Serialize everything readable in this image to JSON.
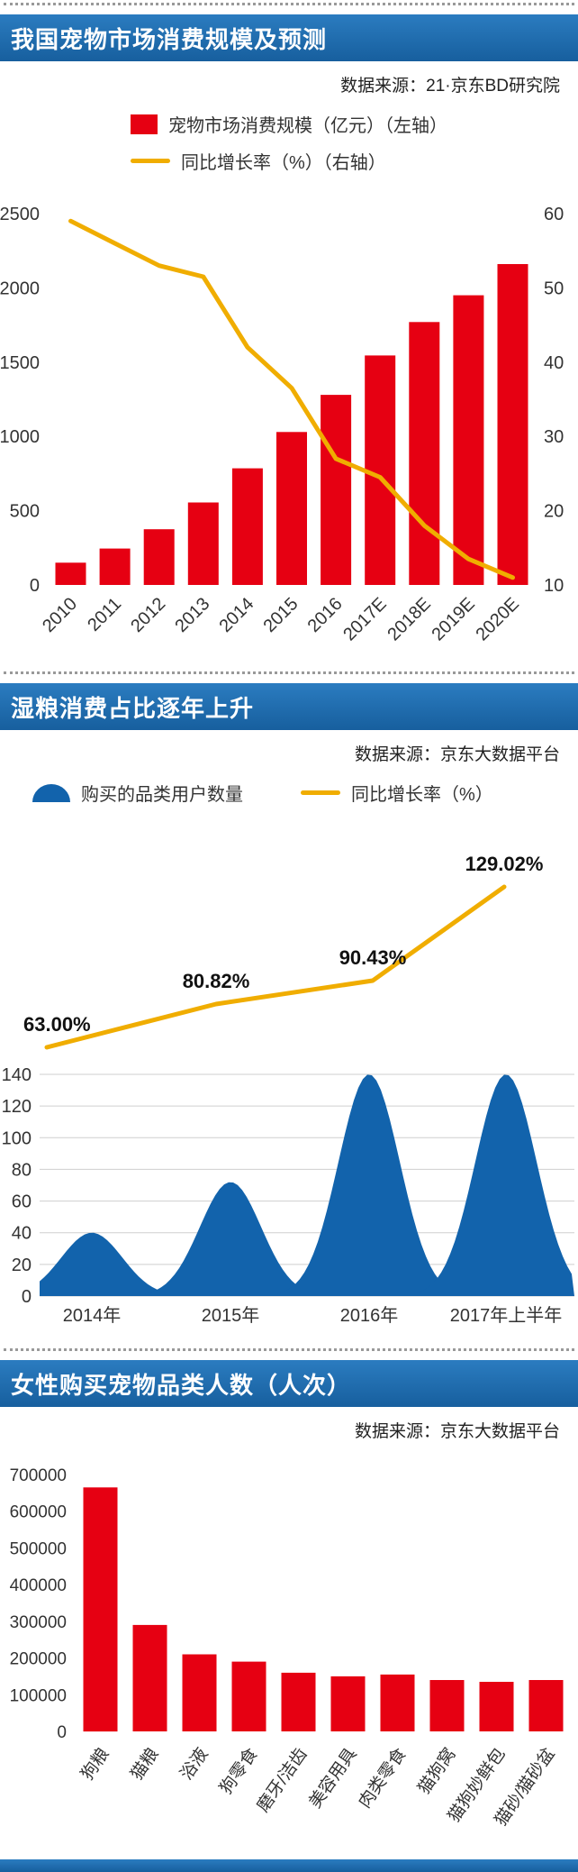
{
  "colors": {
    "header_blue": "#1e6fb2",
    "bar_red": "#e60012",
    "line_yellow": "#f0ad00",
    "hump_blue": "#1263ac",
    "grid": "#cfcfcf",
    "text": "#333333"
  },
  "sections": [
    {
      "title": "我国宠物市场消费规模及预测",
      "source": "数据来源：21·京东BD研究院",
      "legend": [
        {
          "label": "宠物市场消费规模（亿元）（左轴）"
        },
        {
          "label": "同比增长率（%）（右轴）"
        }
      ]
    },
    {
      "title": "湿粮消费占比逐年上升",
      "source": "数据来源：京东大数据平台",
      "legend": [
        {
          "label": "购买的品类用户数量"
        },
        {
          "label": "同比增长率（%）"
        }
      ]
    },
    {
      "title": "女性购买宠物品类人数（人次）",
      "source": "数据来源：京东大数据平台"
    }
  ],
  "chart_data": [
    {
      "type": "bar",
      "subtype": "bar+line combo, dual axis",
      "title": "我国宠物市场消费规模及预测",
      "categories": [
        "2010",
        "2011",
        "2012",
        "2013",
        "2014",
        "2015",
        "2016",
        "2017E",
        "2018E",
        "2019E",
        "2020E"
      ],
      "series": [
        {
          "name": "宠物市场消费规模（亿元）（左轴）",
          "kind": "bar",
          "axis": "left",
          "color": "#e60012",
          "values": [
            150,
            245,
            375,
            555,
            785,
            1030,
            1280,
            1545,
            1770,
            1950,
            2160
          ]
        },
        {
          "name": "同比增长率（%）（右轴）",
          "kind": "line",
          "axis": "right",
          "color": "#f0ad00",
          "values": [
            59,
            56,
            53,
            51.5,
            42,
            36.5,
            27,
            24.5,
            18,
            13.5,
            11
          ]
        }
      ],
      "left_axis": {
        "min": 0,
        "max": 2500,
        "step": 500
      },
      "right_axis": {
        "min": 10,
        "max": 60,
        "step": 10
      },
      "grid": false,
      "legend_position": "top"
    },
    {
      "type": "area",
      "subtype": "bell humps + labelled growth line",
      "title": "湿粮消费占比逐年上升",
      "categories": [
        "2014年",
        "2015年",
        "2016年",
        "2017年上半年"
      ],
      "series": [
        {
          "name": "购买的品类用户数量",
          "kind": "area-humps",
          "color": "#1263ac",
          "values": [
            40,
            72,
            140,
            140
          ]
        },
        {
          "name": "同比增长率（%）",
          "kind": "line",
          "color": "#f0ad00",
          "values": [
            63.0,
            80.82,
            90.43,
            129.02
          ],
          "labels": [
            "63.00%",
            "80.82%",
            "90.43%",
            "129.02%"
          ]
        }
      ],
      "left_axis": {
        "min": 0,
        "max": 140,
        "step": 20
      },
      "grid": true,
      "legend_position": "top"
    },
    {
      "type": "bar",
      "title": "女性购买宠物品类人数（人次）",
      "categories": [
        "狗粮",
        "猫粮",
        "浴液",
        "狗零食",
        "磨牙/洁齿",
        "美容用具",
        "肉类零食",
        "猫狗窝",
        "猫狗妙鲜包",
        "猫砂/猫砂盆"
      ],
      "values": [
        665000,
        290000,
        210000,
        190000,
        160000,
        150000,
        155000,
        140000,
        135000,
        140000
      ],
      "color": "#e60012",
      "ylim": [
        0,
        700000
      ],
      "step": 100000,
      "grid": false
    }
  ]
}
